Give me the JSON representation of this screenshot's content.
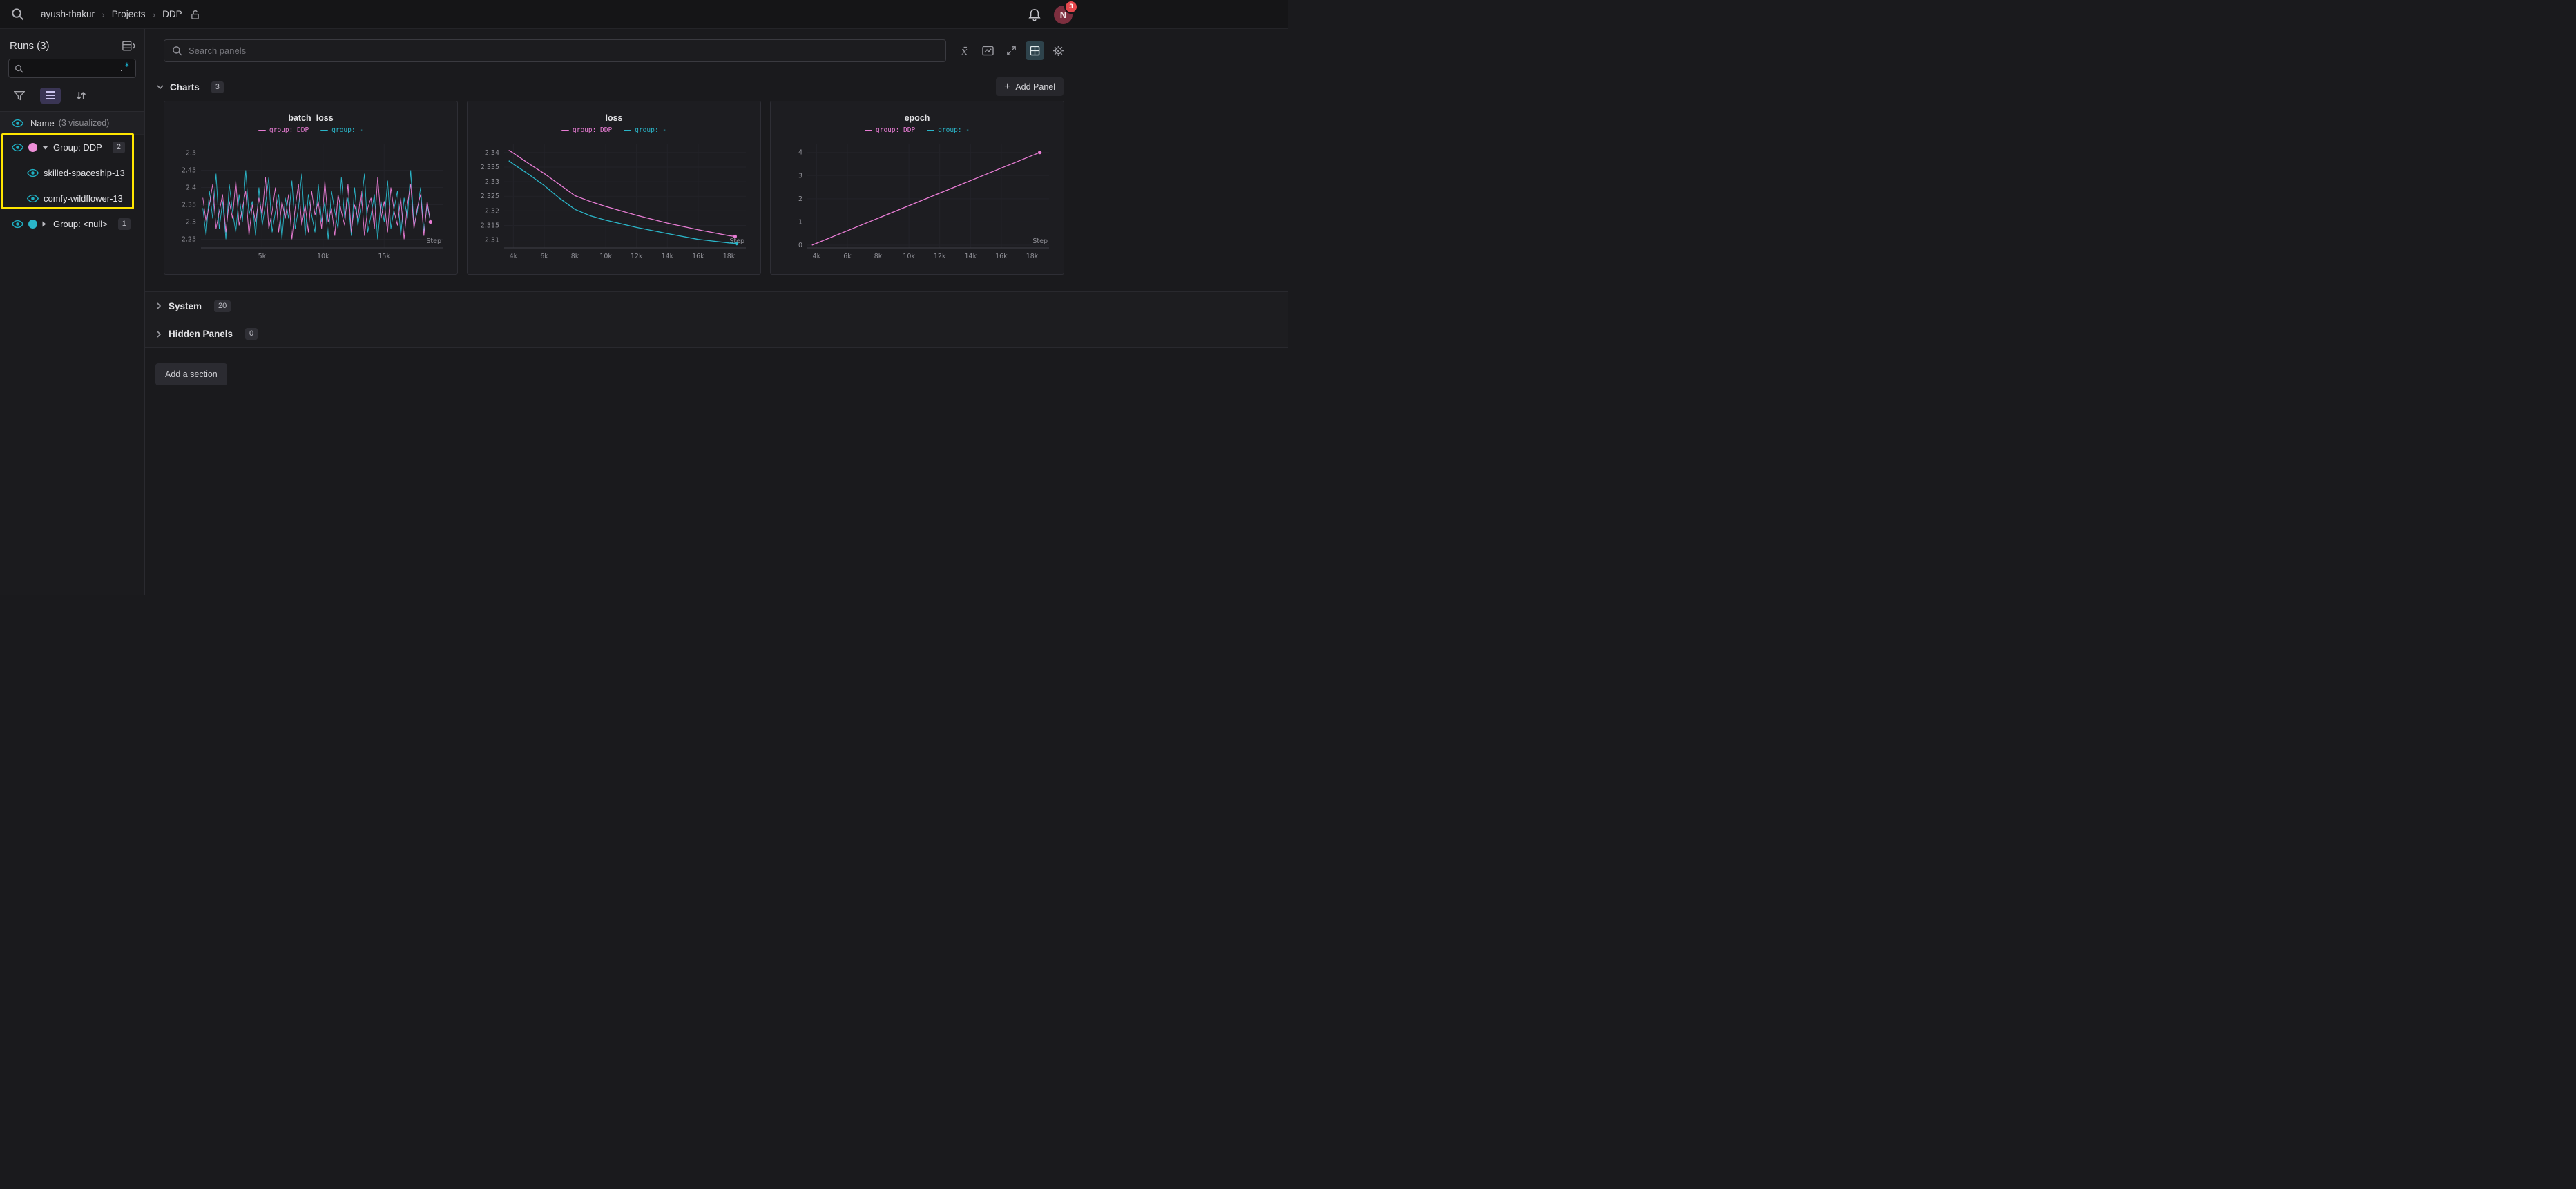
{
  "colors": {
    "pink": "#e87cd4",
    "teal": "#2ab6c9",
    "highlight_yellow": "#ffe600",
    "badge_red": "#e5484d",
    "eye_teal": "#1fb1c4"
  },
  "icons": {
    "plus_glyph": "+",
    "breadcrumb_separator": "›",
    "mean_glyph": "x̄"
  },
  "topbar": {
    "breadcrumb": {
      "items": [
        "ayush-thakur",
        "Projects",
        "DDP"
      ]
    },
    "notification_count": "3",
    "avatar_initial": "N"
  },
  "sidebar": {
    "title": "Runs (3)",
    "search": {
      "placeholder": "",
      "regex_dot": ".",
      "regex_star": "*"
    },
    "header": {
      "name_label": "Name",
      "visualized_note": "(3 visualized)"
    },
    "groups": [
      {
        "label": "Group: DDP",
        "count": "2",
        "dot_color": "#ee8fd8",
        "expanded": true,
        "highlighted": true,
        "runs": [
          "skilled-spaceship-13",
          "comfy-wildflower-13"
        ]
      },
      {
        "label": "Group: <null>",
        "count": "1",
        "dot_color": "#2ab6c9",
        "expanded": false,
        "highlighted": false,
        "runs": []
      }
    ]
  },
  "workspace": {
    "search_placeholder": "Search panels",
    "add_panel_label": "Add Panel",
    "add_section_label": "Add a section",
    "sections": [
      {
        "label": "Charts",
        "count": "3",
        "expanded": true
      },
      {
        "label": "System",
        "count": "20",
        "expanded": false
      },
      {
        "label": "Hidden Panels",
        "count": "0",
        "expanded": false
      }
    ]
  },
  "chart_data": [
    {
      "type": "line",
      "title": "batch_loss",
      "xlabel": "Step",
      "xlim": [
        0,
        19800
      ],
      "ylim": [
        2.225,
        2.525
      ],
      "x_ticks": [
        {
          "v": 5000,
          "label": "5k"
        },
        {
          "v": 10000,
          "label": "10k"
        },
        {
          "v": 15000,
          "label": "15k"
        }
      ],
      "y_ticks": [
        {
          "v": 2.25,
          "label": "2.25"
        },
        {
          "v": 2.3,
          "label": "2.3"
        },
        {
          "v": 2.35,
          "label": "2.35"
        },
        {
          "v": 2.4,
          "label": "2.4"
        },
        {
          "v": 2.45,
          "label": "2.45"
        },
        {
          "v": 2.5,
          "label": "2.5"
        }
      ],
      "legend": [
        {
          "name": "group: DDP",
          "color": "#e87cd4"
        },
        {
          "name": "group: -",
          "color": "#2ab6c9"
        }
      ],
      "series": [
        {
          "name": "group: -",
          "color": "#2ab6c9",
          "stroke_width": 0.9,
          "x_start": 150,
          "x_end": 18800,
          "end_dot": false,
          "values": [
            2.34,
            2.26,
            2.39,
            2.31,
            2.44,
            2.28,
            2.36,
            2.25,
            2.41,
            2.33,
            2.27,
            2.38,
            2.3,
            2.45,
            2.32,
            2.36,
            2.26,
            2.4,
            2.29,
            2.35,
            2.43,
            2.27,
            2.33,
            2.38,
            2.25,
            2.37,
            2.31,
            2.42,
            2.28,
            2.34,
            2.44,
            2.26,
            2.38,
            2.32,
            2.27,
            2.41,
            2.3,
            2.36,
            2.25,
            2.39,
            2.33,
            2.28,
            2.43,
            2.31,
            2.37,
            2.26,
            2.4,
            2.29,
            2.35,
            2.44,
            2.27,
            2.32,
            2.38,
            2.25,
            2.36,
            2.3,
            2.42,
            2.28,
            2.34,
            2.39,
            2.26,
            2.37,
            2.31,
            2.45,
            2.29,
            2.33,
            2.4,
            2.27,
            2.35,
            2.3
          ]
        },
        {
          "name": "group: DDP",
          "color": "#e87cd4",
          "stroke_width": 0.9,
          "x_start": 150,
          "x_end": 18800,
          "end_dot": true,
          "values": [
            2.37,
            2.3,
            2.35,
            2.41,
            2.28,
            2.33,
            2.38,
            2.27,
            2.36,
            2.31,
            2.42,
            2.29,
            2.34,
            2.39,
            2.26,
            2.35,
            2.3,
            2.37,
            2.32,
            2.43,
            2.28,
            2.33,
            2.4,
            2.27,
            2.36,
            2.31,
            2.38,
            2.25,
            2.34,
            2.41,
            2.29,
            2.35,
            2.27,
            2.39,
            2.32,
            2.36,
            2.28,
            2.42,
            2.3,
            2.34,
            2.26,
            2.38,
            2.33,
            2.29,
            2.41,
            2.27,
            2.35,
            2.31,
            2.39,
            2.26,
            2.34,
            2.37,
            2.28,
            2.43,
            2.31,
            2.36,
            2.27,
            2.4,
            2.33,
            2.29,
            2.37,
            2.25,
            2.35,
            2.41,
            2.28,
            2.34,
            2.38,
            2.26,
            2.36,
            2.3
          ]
        }
      ]
    },
    {
      "type": "line",
      "title": "loss",
      "xlabel": "Step",
      "xlim": [
        3400,
        19100
      ],
      "ylim": [
        2.3073,
        2.3428
      ],
      "x_ticks": [
        {
          "v": 4000,
          "label": "4k"
        },
        {
          "v": 6000,
          "label": "6k"
        },
        {
          "v": 8000,
          "label": "8k"
        },
        {
          "v": 10000,
          "label": "10k"
        },
        {
          "v": 12000,
          "label": "12k"
        },
        {
          "v": 14000,
          "label": "14k"
        },
        {
          "v": 16000,
          "label": "16k"
        },
        {
          "v": 18000,
          "label": "18k"
        }
      ],
      "y_ticks": [
        {
          "v": 2.31,
          "label": "2.31"
        },
        {
          "v": 2.315,
          "label": "2.315"
        },
        {
          "v": 2.32,
          "label": "2.32"
        },
        {
          "v": 2.325,
          "label": "2.325"
        },
        {
          "v": 2.33,
          "label": "2.33"
        },
        {
          "v": 2.335,
          "label": "2.335"
        },
        {
          "v": 2.34,
          "label": "2.34"
        }
      ],
      "legend": [
        {
          "name": "group: DDP",
          "color": "#e87cd4"
        },
        {
          "name": "group: -",
          "color": "#2ab6c9"
        }
      ],
      "series": [
        {
          "name": "group: -",
          "color": "#2ab6c9",
          "stroke_width": 1.3,
          "end_dot": true,
          "points": [
            [
              3700,
              2.3372
            ],
            [
              4000,
              2.336
            ],
            [
              5000,
              2.3325
            ],
            [
              6000,
              2.3287
            ],
            [
              7000,
              2.3243
            ],
            [
              8000,
              2.3205
            ],
            [
              9000,
              2.3183
            ],
            [
              10000,
              2.3168
            ],
            [
              12000,
              2.3143
            ],
            [
              14000,
              2.3122
            ],
            [
              16000,
              2.3102
            ],
            [
              18000,
              2.309
            ],
            [
              18500,
              2.3088
            ]
          ]
        },
        {
          "name": "group: DDP",
          "color": "#e87cd4",
          "stroke_width": 1.3,
          "end_dot": true,
          "points": [
            [
              3700,
              2.3408
            ],
            [
              4000,
              2.3398
            ],
            [
              5000,
              2.3362
            ],
            [
              6000,
              2.3328
            ],
            [
              7000,
              2.329
            ],
            [
              8000,
              2.3252
            ],
            [
              9000,
              2.3232
            ],
            [
              10000,
              2.3215
            ],
            [
              12000,
              2.3185
            ],
            [
              14000,
              2.3158
            ],
            [
              16000,
              2.3135
            ],
            [
              18000,
              2.3115
            ],
            [
              18400,
              2.3112
            ]
          ]
        }
      ]
    },
    {
      "type": "line",
      "title": "epoch",
      "xlabel": "Step",
      "xlim": [
        3400,
        19100
      ],
      "ylim": [
        -0.12,
        4.35
      ],
      "x_ticks": [
        {
          "v": 4000,
          "label": "4k"
        },
        {
          "v": 6000,
          "label": "6k"
        },
        {
          "v": 8000,
          "label": "8k"
        },
        {
          "v": 10000,
          "label": "10k"
        },
        {
          "v": 12000,
          "label": "12k"
        },
        {
          "v": 14000,
          "label": "14k"
        },
        {
          "v": 16000,
          "label": "16k"
        },
        {
          "v": 18000,
          "label": "18k"
        }
      ],
      "y_ticks": [
        {
          "v": 0,
          "label": "0"
        },
        {
          "v": 1,
          "label": "1"
        },
        {
          "v": 2,
          "label": "2"
        },
        {
          "v": 3,
          "label": "3"
        },
        {
          "v": 4,
          "label": "4"
        }
      ],
      "legend": [
        {
          "name": "group: DDP",
          "color": "#e87cd4"
        },
        {
          "name": "group: -",
          "color": "#2ab6c9"
        }
      ],
      "series": [
        {
          "name": "group: DDP",
          "color": "#e87cd4",
          "stroke_width": 1.3,
          "end_dot": true,
          "points": [
            [
              3700,
              0
            ],
            [
              18500,
              4
            ]
          ]
        }
      ]
    }
  ]
}
